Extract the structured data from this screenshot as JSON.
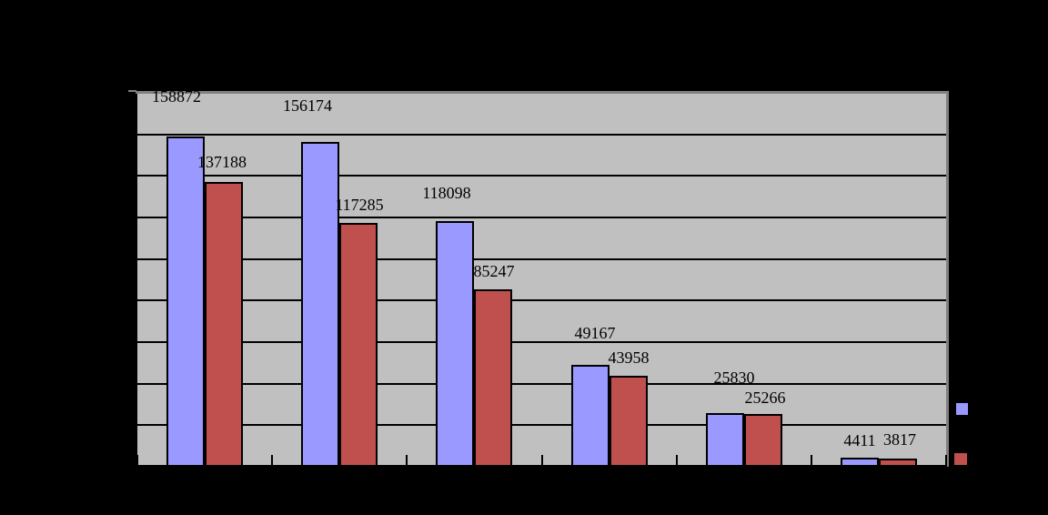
{
  "chart_data": {
    "type": "bar",
    "title": "",
    "categories": [
      "",
      "",
      "",
      "",
      "",
      ""
    ],
    "series": [
      {
        "name": "",
        "color": "#9999FF",
        "values": [
          158872,
          156174,
          118098,
          49167,
          25830,
          4411
        ],
        "data_labels": [
          "158872",
          "156174",
          "118098",
          "49167",
          "25830",
          "4411"
        ]
      },
      {
        "name": "",
        "color": "#C0504D",
        "values": [
          137188,
          117285,
          85247,
          43958,
          25266,
          3817
        ],
        "data_labels": [
          "137188",
          "117285",
          "85247",
          "43958",
          "25266",
          "3817"
        ]
      }
    ],
    "ylim": [
      0,
      180000
    ],
    "gridline_step": 20000,
    "grid": true,
    "legend_position": "right",
    "plot_background": "#C0C0C0",
    "plot_border_color": "#808080",
    "gridline_color": "#000000",
    "page_background": "#000000",
    "label_color": "#000000"
  }
}
